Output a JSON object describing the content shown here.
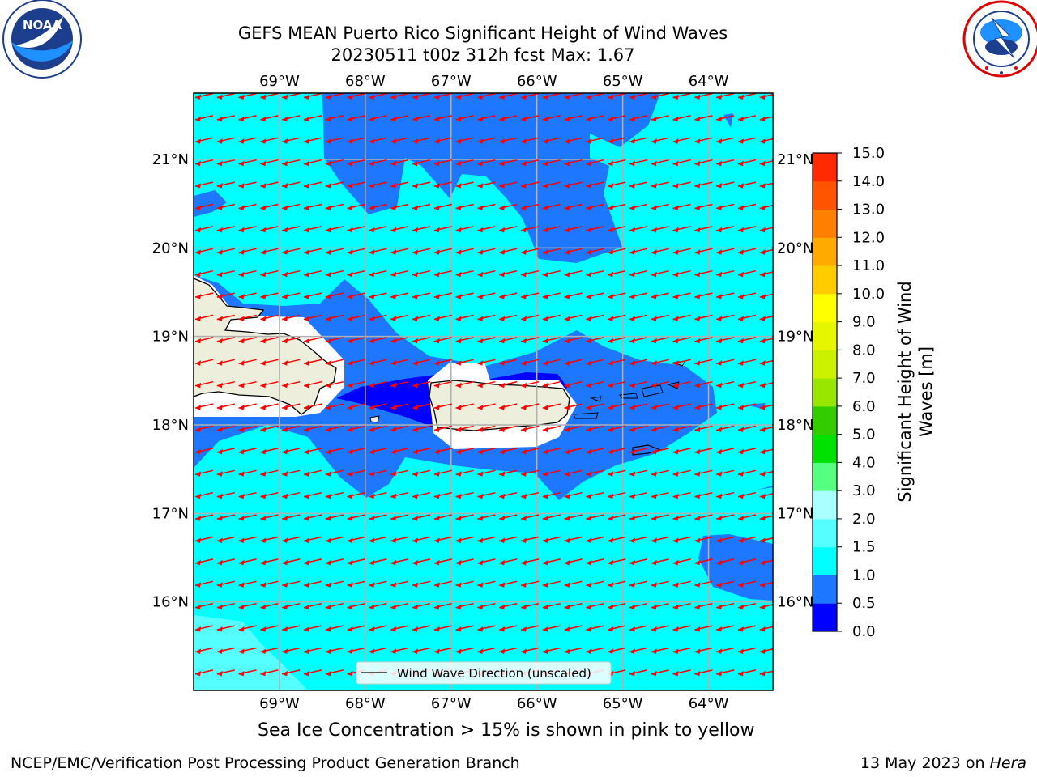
{
  "title": {
    "line1": "GEFS MEAN Puerto Rico Significant Height of Wind Waves",
    "line2": "20230511 t00z 312h fcst   Max: 1.67"
  },
  "logos": {
    "left": {
      "icon": "noaa-logo-icon",
      "text": "NOAA",
      "ring_text": "NATIONAL OCEANIC AND ATMOSPHERIC ADMINISTRATION · U.S. DEPARTMENT OF COMMERCE"
    },
    "right": {
      "icon": "nws-logo-icon",
      "ring_text": "NATIONAL WEATHER SERVICE"
    }
  },
  "map": {
    "lon_labels": [
      "69°W",
      "68°W",
      "67°W",
      "66°W",
      "65°W",
      "64°W"
    ],
    "lat_labels": [
      "21°N",
      "20°N",
      "19°N",
      "18°N",
      "17°N",
      "16°N"
    ],
    "lon_values": [
      -69,
      -68,
      -67,
      -66,
      -65,
      -64
    ],
    "lat_values": [
      21,
      20,
      19,
      18,
      17,
      16
    ],
    "extent": {
      "lon_min": -70,
      "lon_max": -63.25,
      "lat_min": 15,
      "lat_max": 21.75
    },
    "arrow_direction": "westward",
    "arrow_color": "#ff0000",
    "legend_label": "Wind Wave Direction (unscaled)",
    "land_color": "#eeeedd"
  },
  "colorbar": {
    "label": "Significant Height of Wind Waves [m]",
    "label_lines": [
      "Significant Height of Wind",
      "Waves [m]"
    ],
    "levels": [
      0.0,
      0.5,
      1.0,
      1.5,
      2.0,
      3.0,
      4.0,
      5.0,
      6.0,
      7.0,
      8.0,
      9.0,
      10.0,
      11.0,
      12.0,
      13.0,
      14.0,
      15.0
    ],
    "tick_labels": [
      "0.0",
      "0.5",
      "1.0",
      "1.5",
      "2.0",
      "3.0",
      "4.0",
      "5.0",
      "6.0",
      "7.0",
      "8.0",
      "9.0",
      "10.0",
      "11.0",
      "12.0",
      "13.0",
      "14.0",
      "15.0"
    ],
    "colors": [
      "#0000ff",
      "#1e78ff",
      "#00ffff",
      "#55ffff",
      "#aaffff",
      "#55ff80",
      "#00e100",
      "#33cc00",
      "#99e600",
      "#ccf200",
      "#e6f500",
      "#ffff00",
      "#ffcc00",
      "#ffaa00",
      "#ff8000",
      "#ff5500",
      "#ff2a00"
    ]
  },
  "ice_note": "Sea Ice Concentration > 15% is shown in pink to yellow",
  "footer": {
    "left": "NCEP/EMC/Verification Post Processing Product Generation Branch",
    "right_prefix": "13 May 2023 on ",
    "right_host": "Hera"
  }
}
